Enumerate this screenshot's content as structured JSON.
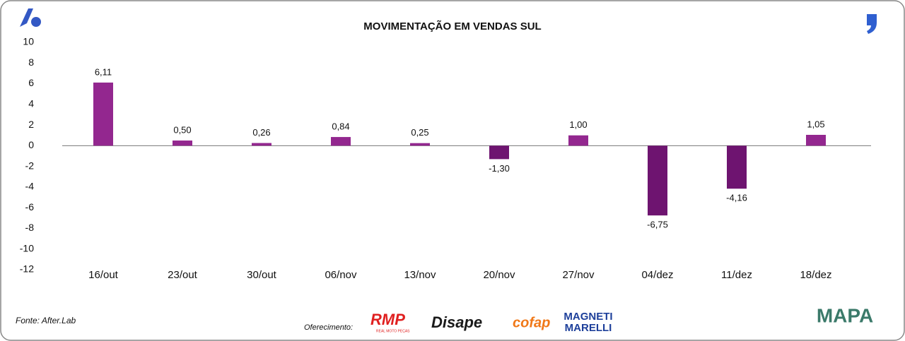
{
  "chart_data": {
    "type": "bar",
    "title": "MOVIMENTAÇÃO EM VENDAS SUL",
    "categories": [
      "16/out",
      "23/out",
      "30/out",
      "06/nov",
      "13/nov",
      "20/nov",
      "27/nov",
      "04/dez",
      "11/dez",
      "18/dez"
    ],
    "values": [
      6.11,
      0.5,
      0.26,
      0.84,
      0.25,
      -1.3,
      1.0,
      -6.75,
      -4.16,
      1.05
    ],
    "value_labels": [
      "6,11",
      "0,50",
      "0,26",
      "0,84",
      "0,25",
      "-1,30",
      "1,00",
      "-6,75",
      "-4,16",
      "1,05"
    ],
    "color": "#93278f",
    "negative_color": "#6e1470",
    "ylim": [
      -12,
      10
    ],
    "yticks": [
      10,
      8,
      6,
      4,
      2,
      0,
      -2,
      -4,
      -6,
      -8,
      -10,
      -12
    ],
    "grid": false
  },
  "footer": {
    "source": "Fonte: After.Lab",
    "sponsor_label": "Oferecimento:",
    "sponsors": [
      "RMP",
      "REAL MOTO PEÇAS",
      "Disape",
      "cofap",
      "MAGNETI",
      "MARELLI"
    ],
    "brand": "MAPA"
  }
}
